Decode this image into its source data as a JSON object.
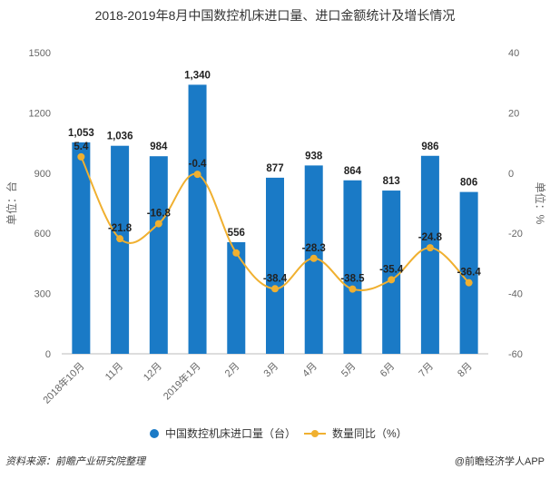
{
  "chart_data": {
    "type": "bar",
    "title": "2018-2019年8月中国数控机床进口量、进口金额统计及增长情况",
    "categories": [
      "2018年10月",
      "11月",
      "12月",
      "2019年1月",
      "2月",
      "3月",
      "4月",
      "5月",
      "6月",
      "7月",
      "8月"
    ],
    "series": [
      {
        "name": "中国数控机床进口量（台）",
        "type": "bar",
        "axis": "left",
        "color": "#1a7ac6",
        "values": [
          1053,
          1036,
          984,
          1340,
          556,
          877,
          938,
          864,
          813,
          986,
          806
        ],
        "labels": [
          "1,053",
          "1,036",
          "984",
          "1,340",
          "556",
          "877",
          "938",
          "864",
          "813",
          "986",
          "806"
        ]
      },
      {
        "name": "数量同比（%）",
        "type": "line",
        "axis": "right",
        "color": "#f0b030",
        "values": [
          5.4,
          -21.8,
          -16.8,
          -0.4,
          -26.5,
          -38.4,
          -28.3,
          -38.5,
          -35.4,
          -24.8,
          -36.4
        ],
        "labels": [
          "5.4",
          "-21.8",
          "-16.8",
          "-0.4",
          "",
          "-38.4",
          "-28.3",
          "-38.5",
          "-35.4",
          "-24.8",
          "-36.4"
        ]
      }
    ],
    "y_left": {
      "label": "单位：台",
      "range": [
        0,
        1500
      ],
      "ticks": [
        "0",
        "300",
        "600",
        "900",
        "1200",
        "1500"
      ]
    },
    "y_right": {
      "label": "单位：%",
      "range": [
        -60,
        40
      ],
      "ticks": [
        "-60",
        "-40",
        "-20",
        "0",
        "20",
        "40"
      ]
    },
    "grid": false,
    "legend_position": "bottom"
  },
  "footer": {
    "source": "资料来源：前瞻产业研究院整理",
    "credit": "@前瞻经济学人APP"
  }
}
